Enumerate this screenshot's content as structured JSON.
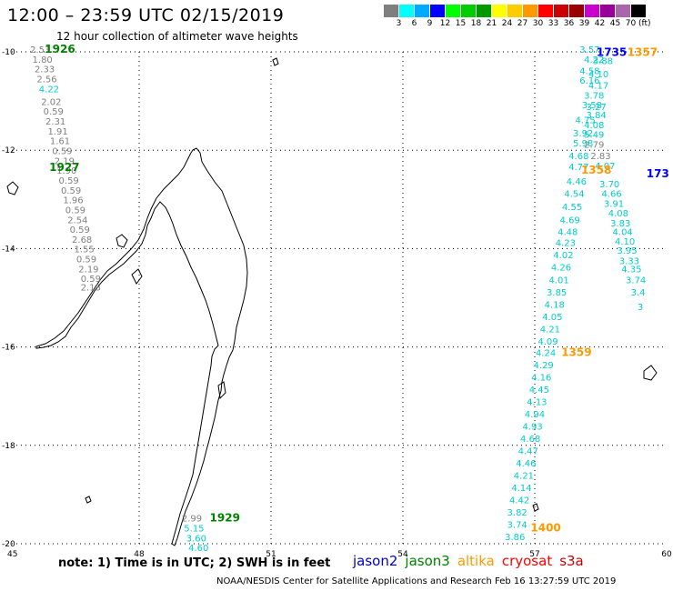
{
  "header": {
    "title": "12:00 – 23:59 UTC 02/15/2019",
    "subtitle": "12 hour collection of altimeter wave heights"
  },
  "colorbar": {
    "colors": [
      "#7f7f7f",
      "#00ffff",
      "#00aaff",
      "#0000ff",
      "#00ff00",
      "#00cc00",
      "#009900",
      "#ffff00",
      "#ffcc00",
      "#ff9900",
      "#ff0000",
      "#cc0000",
      "#990000",
      "#cc00cc",
      "#990099",
      "#aa66aa",
      "#000000"
    ],
    "labels": [
      "3",
      "6",
      "9",
      "12",
      "15",
      "18",
      "21",
      "24",
      "27",
      "30",
      "33",
      "36",
      "39",
      "42",
      "45",
      "70"
    ],
    "unit": "(ft)"
  },
  "axes": {
    "lon_ticks": [
      "45",
      "48",
      "51",
      "54",
      "57",
      "60"
    ],
    "lat_ticks": [
      "-10",
      "-12",
      "-14",
      "-16",
      "-18",
      "-20"
    ]
  },
  "times": [
    {
      "label": "1926",
      "color": "#008000",
      "lat": -10.02,
      "lon": 46.2
    },
    {
      "label": "1927",
      "color": "#008000",
      "lat": -12.42,
      "lon": 46.3
    },
    {
      "label": "1929",
      "color": "#008000",
      "lat": -19.55,
      "lon": 49.95
    },
    {
      "label": "1735",
      "color": "#0000ff",
      "lat": -10.08,
      "lon": 58.75
    },
    {
      "label": "1357",
      "color": "#ff9900",
      "lat": -10.08,
      "lon": 59.45
    },
    {
      "label": "1358",
      "color": "#ff9900",
      "lat": -12.48,
      "lon": 58.4
    },
    {
      "label": "173",
      "color": "#0000ff",
      "lat": -12.55,
      "lon": 59.8
    },
    {
      "label": "1359",
      "color": "#ff9900",
      "lat": -16.18,
      "lon": 57.95
    },
    {
      "label": "1400",
      "color": "#ff9900",
      "lat": -19.75,
      "lon": 57.25
    }
  ],
  "tracks": [
    {
      "name": "track-saral-gray-north",
      "points": [
        {
          "v": "2.53",
          "c": "#808080",
          "lat": -10.02,
          "lon": 45.75
        },
        {
          "v": "1.80",
          "c": "#808080",
          "lat": -10.22,
          "lon": 45.8
        },
        {
          "v": "2.33",
          "c": "#808080",
          "lat": -10.42,
          "lon": 45.85
        },
        {
          "v": "2.56",
          "c": "#808080",
          "lat": -10.62,
          "lon": 45.9
        },
        {
          "v": "4.22",
          "c": "#00cccc",
          "lat": -10.82,
          "lon": 45.95
        },
        {
          "v": "2.02",
          "c": "#808080",
          "lat": -11.08,
          "lon": 46.0
        },
        {
          "v": "0.59",
          "c": "#808080",
          "lat": -11.28,
          "lon": 46.05
        },
        {
          "v": "2.31",
          "c": "#808080",
          "lat": -11.48,
          "lon": 46.1
        },
        {
          "v": "1.91",
          "c": "#808080",
          "lat": -11.68,
          "lon": 46.15
        },
        {
          "v": "1.61",
          "c": "#808080",
          "lat": -11.88,
          "lon": 46.2
        },
        {
          "v": "0.59",
          "c": "#808080",
          "lat": -12.08,
          "lon": 46.25
        },
        {
          "v": "2.19",
          "c": "#808080",
          "lat": -12.28,
          "lon": 46.3
        },
        {
          "v": "1.90",
          "c": "#808080",
          "lat": -12.48,
          "lon": 46.35
        },
        {
          "v": "0.59",
          "c": "#808080",
          "lat": -12.68,
          "lon": 46.4
        },
        {
          "v": "0.59",
          "c": "#808080",
          "lat": -12.88,
          "lon": 46.45
        },
        {
          "v": "1.96",
          "c": "#808080",
          "lat": -13.08,
          "lon": 46.5
        },
        {
          "v": "0.59",
          "c": "#808080",
          "lat": -13.28,
          "lon": 46.55
        },
        {
          "v": "2.54",
          "c": "#808080",
          "lat": -13.48,
          "lon": 46.6
        },
        {
          "v": "0.59",
          "c": "#808080",
          "lat": -13.68,
          "lon": 46.65
        },
        {
          "v": "2.68",
          "c": "#808080",
          "lat": -13.88,
          "lon": 46.7
        },
        {
          "v": "1.55",
          "c": "#808080",
          "lat": -14.08,
          "lon": 46.75
        },
        {
          "v": "0.59",
          "c": "#808080",
          "lat": -14.28,
          "lon": 46.8
        },
        {
          "v": "2.19",
          "c": "#808080",
          "lat": -14.48,
          "lon": 46.85
        },
        {
          "v": "0.59",
          "c": "#808080",
          "lat": -14.68,
          "lon": 46.9
        },
        {
          "v": "2.13",
          "c": "#808080",
          "lat": -14.85,
          "lon": 46.9
        }
      ]
    },
    {
      "name": "track-saral-south",
      "points": [
        {
          "v": "2.99",
          "c": "#808080",
          "lat": -19.55,
          "lon": 49.2
        },
        {
          "v": "5.15",
          "c": "#00cccc",
          "lat": -19.75,
          "lon": 49.25
        },
        {
          "v": "3.60",
          "c": "#00cccc",
          "lat": -19.95,
          "lon": 49.3
        },
        {
          "v": "4.60",
          "c": "#00cccc",
          "lat": -20.15,
          "lon": 49.35
        }
      ]
    },
    {
      "name": "track-altika-east",
      "points": [
        {
          "v": "4.22",
          "c": "#00cccc",
          "lat": -10.22,
          "lon": 58.35
        },
        {
          "v": "3.88",
          "c": "#00cccc",
          "lat": -10.25,
          "lon": 58.55
        },
        {
          "v": "4.58",
          "c": "#00cccc",
          "lat": -10.45,
          "lon": 58.25
        },
        {
          "v": "4.10",
          "c": "#00cccc",
          "lat": -10.52,
          "lon": 58.45
        },
        {
          "v": "6.16",
          "c": "#00cccc",
          "lat": -10.65,
          "lon": 58.25
        },
        {
          "v": "4.17",
          "c": "#00cccc",
          "lat": -10.75,
          "lon": 58.45
        },
        {
          "v": "3.78",
          "c": "#00cccc",
          "lat": -10.95,
          "lon": 58.35
        },
        {
          "v": "3.58",
          "c": "#00cccc",
          "lat": -11.15,
          "lon": 58.3
        },
        {
          "v": "3.27",
          "c": "#00cccc",
          "lat": -11.18,
          "lon": 58.4
        },
        {
          "v": "3.84",
          "c": "#00cccc",
          "lat": -11.35,
          "lon": 58.4
        },
        {
          "v": "4.75",
          "c": "#00cccc",
          "lat": -11.45,
          "lon": 58.15
        },
        {
          "v": "4.08",
          "c": "#00cccc",
          "lat": -11.55,
          "lon": 58.35
        },
        {
          "v": "3.92",
          "c": "#00cccc",
          "lat": -11.72,
          "lon": 58.1
        },
        {
          "v": "5.49",
          "c": "#00cccc",
          "lat": -11.75,
          "lon": 58.35
        },
        {
          "v": "5.98",
          "c": "#00cccc",
          "lat": -11.92,
          "lon": 58.1
        },
        {
          "v": "2.79",
          "c": "#808080",
          "lat": -11.95,
          "lon": 58.35
        },
        {
          "v": "4.68",
          "c": "#00cccc",
          "lat": -12.18,
          "lon": 58.0
        },
        {
          "v": "2.83",
          "c": "#808080",
          "lat": -12.18,
          "lon": 58.5
        },
        {
          "v": "4.77",
          "c": "#00cccc",
          "lat": -12.4,
          "lon": 58.0
        },
        {
          "v": "4.07",
          "c": "#00cccc",
          "lat": -12.38,
          "lon": 58.6
        },
        {
          "v": "4.46",
          "c": "#00cccc",
          "lat": -12.7,
          "lon": 57.95
        },
        {
          "v": "3.70",
          "c": "#00cccc",
          "lat": -12.75,
          "lon": 58.7
        },
        {
          "v": "4.54",
          "c": "#00cccc",
          "lat": -12.95,
          "lon": 57.9
        },
        {
          "v": "4.66",
          "c": "#00cccc",
          "lat": -12.95,
          "lon": 58.75
        },
        {
          "v": "4.55",
          "c": "#00cccc",
          "lat": -13.22,
          "lon": 57.85
        },
        {
          "v": "3.91",
          "c": "#00cccc",
          "lat": -13.15,
          "lon": 58.8
        },
        {
          "v": "4.69",
          "c": "#00cccc",
          "lat": -13.48,
          "lon": 57.8
        },
        {
          "v": "4.08",
          "c": "#00cccc",
          "lat": -13.35,
          "lon": 58.9
        },
        {
          "v": "3.83",
          "c": "#00cccc",
          "lat": -13.55,
          "lon": 58.95
        },
        {
          "v": "4.48",
          "c": "#00cccc",
          "lat": -13.72,
          "lon": 57.75
        },
        {
          "v": "4.04",
          "c": "#00cccc",
          "lat": -13.72,
          "lon": 59.0
        },
        {
          "v": "4.23",
          "c": "#00cccc",
          "lat": -13.95,
          "lon": 57.7
        },
        {
          "v": "4.10",
          "c": "#00cccc",
          "lat": -13.92,
          "lon": 59.05
        },
        {
          "v": "3.95",
          "c": "#00cccc",
          "lat": -14.1,
          "lon": 59.1
        },
        {
          "v": "4.02",
          "c": "#00cccc",
          "lat": -14.2,
          "lon": 57.65
        },
        {
          "v": "3.33",
          "c": "#00cccc",
          "lat": -14.32,
          "lon": 59.15
        },
        {
          "v": "4.26",
          "c": "#00cccc",
          "lat": -14.45,
          "lon": 57.6
        },
        {
          "v": "4.35",
          "c": "#00cccc",
          "lat": -14.48,
          "lon": 59.2
        },
        {
          "v": "4.01",
          "c": "#00cccc",
          "lat": -14.7,
          "lon": 57.55
        },
        {
          "v": "3.74",
          "c": "#00cccc",
          "lat": -14.7,
          "lon": 59.3
        },
        {
          "v": "3.85",
          "c": "#00cccc",
          "lat": -14.95,
          "lon": 57.5
        },
        {
          "v": "3.4",
          "c": "#00cccc",
          "lat": -14.95,
          "lon": 59.35
        },
        {
          "v": "4.18",
          "c": "#00cccc",
          "lat": -15.2,
          "lon": 57.45
        },
        {
          "v": "3",
          "c": "#00cccc",
          "lat": -15.25,
          "lon": 59.4
        },
        {
          "v": "4.05",
          "c": "#00cccc",
          "lat": -15.45,
          "lon": 57.4
        },
        {
          "v": "4.21",
          "c": "#00cccc",
          "lat": -15.7,
          "lon": 57.35
        },
        {
          "v": "4.09",
          "c": "#00cccc",
          "lat": -15.95,
          "lon": 57.3
        },
        {
          "v": "4.24",
          "c": "#00cccc",
          "lat": -16.18,
          "lon": 57.25
        },
        {
          "v": "4.29",
          "c": "#00cccc",
          "lat": -16.43,
          "lon": 57.2
        },
        {
          "v": "4.16",
          "c": "#00cccc",
          "lat": -16.68,
          "lon": 57.15
        },
        {
          "v": "4.45",
          "c": "#00cccc",
          "lat": -16.93,
          "lon": 57.1
        },
        {
          "v": "4.13",
          "c": "#00cccc",
          "lat": -17.18,
          "lon": 57.05
        },
        {
          "v": "4.94",
          "c": "#00cccc",
          "lat": -17.43,
          "lon": 57.0
        },
        {
          "v": "4.93",
          "c": "#00cccc",
          "lat": -17.68,
          "lon": 56.95
        },
        {
          "v": "4.68",
          "c": "#00cccc",
          "lat": -17.93,
          "lon": 56.9
        },
        {
          "v": "4.47",
          "c": "#00cccc",
          "lat": -18.18,
          "lon": 56.85
        },
        {
          "v": "4.46",
          "c": "#00cccc",
          "lat": -18.43,
          "lon": 56.8
        },
        {
          "v": "4.21",
          "c": "#00cccc",
          "lat": -18.68,
          "lon": 56.75
        },
        {
          "v": "4.14",
          "c": "#00cccc",
          "lat": -18.93,
          "lon": 56.7
        },
        {
          "v": "4.42",
          "c": "#00cccc",
          "lat": -19.18,
          "lon": 56.65
        },
        {
          "v": "3.82",
          "c": "#00cccc",
          "lat": -19.43,
          "lon": 56.6
        },
        {
          "v": "3.74",
          "c": "#00cccc",
          "lat": -19.68,
          "lon": 56.6
        },
        {
          "v": "3.86",
          "c": "#00cccc",
          "lat": -19.93,
          "lon": 56.55
        },
        {
          "v": "3.57",
          "c": "#00cccc",
          "lat": -10.02,
          "lon": 58.25
        }
      ]
    }
  ],
  "footer": {
    "note": "note: 1) Time is in UTC; 2) SWH is in feet",
    "legend": [
      {
        "label": "jason2",
        "color": "#0000cc"
      },
      {
        "label": "jason3",
        "color": "#008000"
      },
      {
        "label": "altika",
        "color": "#ff9900"
      },
      {
        "label": "cryosat",
        "color": "#ff0000"
      },
      {
        "label": "s3a",
        "color": "#cc0000"
      }
    ],
    "credit": "NOAA/NESDIS Center for Satellite Applications and Research    Feb 16 13:27:59 UTC 2019"
  }
}
